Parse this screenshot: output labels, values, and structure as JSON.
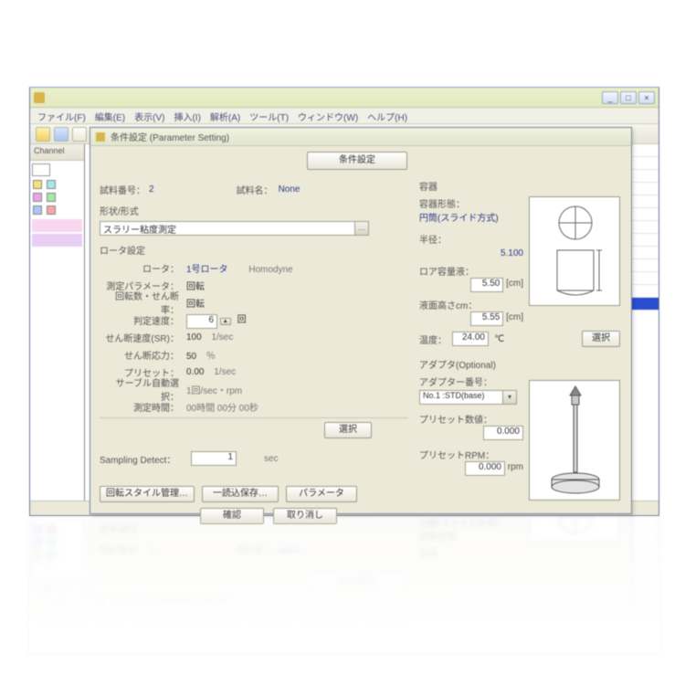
{
  "app": {
    "menus": [
      "ファイル(F)",
      "編集(E)",
      "表示(V)",
      "挿入(I)",
      "解析(A)",
      "ツール(T)",
      "ウィンドウ(W)",
      "ヘルプ(H)"
    ],
    "tree_header": "Channel"
  },
  "dialog": {
    "title": "条件設定 (Parameter Setting)",
    "top_button": "条件設定",
    "id_label": "試料番号：",
    "id_value": "2",
    "device_label": "試料名：",
    "device_value": "None",
    "vg_title": "形状/形式",
    "vg_input": "スラリー粘度測定",
    "rotor_title": "ロータ設定",
    "rows": [
      {
        "label": "ロータ：",
        "val": "1号ロータ",
        "unit": "Homodyne"
      },
      {
        "label": "測定パラメータ：",
        "val": "",
        "unit": "回転"
      },
      {
        "label": "回転数・せん断率：",
        "val": "",
        "unit": "回転"
      },
      {
        "label": "判定速度：",
        "val": "6",
        "spin": true,
        "unit": "回"
      },
      {
        "label": "せん断速度(SR)：",
        "val": "100",
        "unit": "1/sec"
      },
      {
        "label": "せん断応力：",
        "val": "50",
        "unit": "％"
      },
      {
        "label": "プリセット：",
        "val": "0.00",
        "unit": "1/sec"
      },
      {
        "label": "サーブル自動選択：",
        "val": "",
        "unit": "1回/sec・rpm"
      }
    ],
    "sub_row_label": "測定時間：",
    "sub_row_val": "00時間 00分 00秒",
    "change_btn": "選択",
    "sampling_label": "Sampling Detect：",
    "sampling_val": "1",
    "sampling_unit": "sec",
    "bottom_btns": [
      "回転スタイル管理…",
      "一読込保存…",
      "パラメータ"
    ],
    "ok": "確認",
    "cancel": "取り消し",
    "right": {
      "vg_title": "容器",
      "vg_sub1": "容器形態：",
      "vg_sub2": "円筒(スライド方式)",
      "r_label": "半径：",
      "r_val": "5.100",
      "outer_label": "ロア容量液：",
      "outer_val": "5.50",
      "outer_unit": "[cm]",
      "level_label": "液面高さcm：",
      "level_val": "5.55",
      "level_unit": "[cm]",
      "temp_label": "温度：",
      "temp_val": "24.00",
      "temp_unit": "℃",
      "diag_btn": "選択",
      "adapter_title": "アダプタ(Optional)",
      "adapter_num_label": "アダプター番号：",
      "adapter_num_val": "No.1 :STD(base)",
      "adapter_val_label": "プリセット数値：",
      "adapter_val_val": "0.000",
      "rpm_label": "プリセットRPM：",
      "rpm_val": "0.000",
      "rpm_unit": "rpm"
    }
  }
}
